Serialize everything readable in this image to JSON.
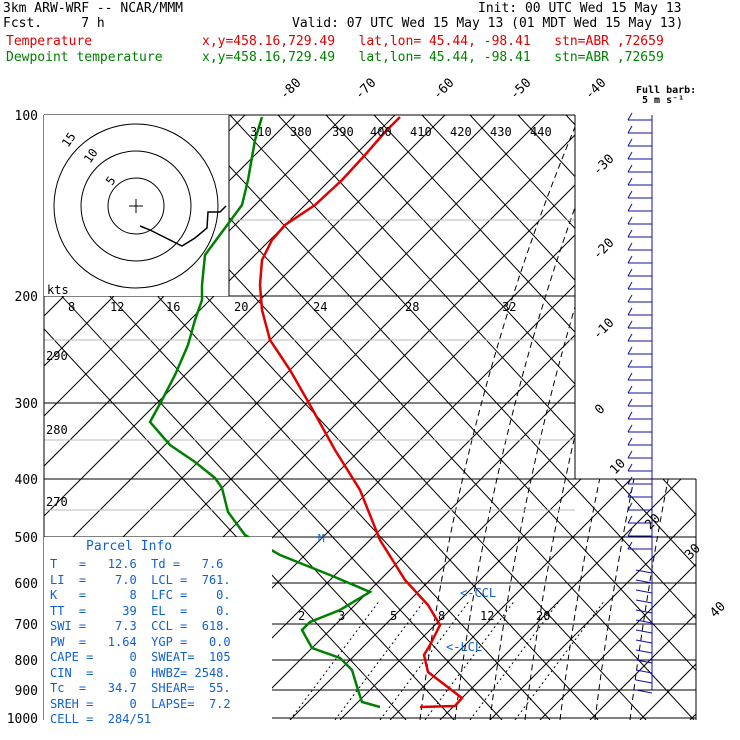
{
  "header": {
    "model": "3km ARW-WRF -- NCAR/MMM",
    "init": "Init: 00 UTC Wed 15 May 13",
    "fcst": "Fcst.     7 h",
    "valid": "Valid: 07 UTC Wed 15 May 13 (01 MDT Wed 15 May 13)",
    "temp_label": "Temperature",
    "temp_loc": "x,y=458.16,729.49   lat,lon= 45.44, -98.41   stn=ABR ,72659",
    "dew_label": "Dewpoint temperature",
    "dew_loc": "x,y=458.16,729.49   lat,lon= 45.44, -98.41   stn=ABR ,72659",
    "barb_legend_1": "Full barb:",
    "barb_legend_2": "5 m s⁻¹"
  },
  "colors": {
    "temperature": "#e00000",
    "dewpoint": "#008000",
    "parcel": "#1060d0",
    "barb": "#1010a0"
  },
  "chart_data": {
    "type": "line",
    "pressure_labels": [
      "100",
      "200",
      "300",
      "400",
      "500",
      "600",
      "700",
      "800",
      "900",
      "1000"
    ],
    "isotherm_labels": [
      "-80",
      "-70",
      "-60",
      "-50",
      "-40",
      "-30",
      "-20",
      "-10",
      "0",
      "10",
      "20",
      "30",
      "40"
    ],
    "theta_labels": [
      "310",
      "380",
      "390",
      "400",
      "410",
      "420",
      "430",
      "440"
    ],
    "hodo_speed_labels": [
      "8",
      "12",
      "16",
      "20",
      "24",
      "28",
      "32"
    ],
    "hodo_unit": "kts",
    "hodo_ring_labels": [
      "5",
      "10",
      "15"
    ],
    "mixing_ratio_labels": [
      "2",
      "3",
      "5",
      "8",
      "12",
      "20"
    ],
    "left_labels": [
      "290",
      "280",
      "270"
    ],
    "ccl_label": "<-CCL",
    "lcl_label": "<-LCL",
    "lfc_mark": "M",
    "series": [
      {
        "name": "Temperature",
        "points": [
          [
            400,
            117
          ],
          [
            385,
            132
          ],
          [
            365,
            155
          ],
          [
            342,
            180
          ],
          [
            315,
            205
          ],
          [
            285,
            225
          ],
          [
            272,
            240
          ],
          [
            262,
            260
          ],
          [
            260,
            285
          ],
          [
            262,
            310
          ],
          [
            270,
            340
          ],
          [
            290,
            370
          ],
          [
            310,
            405
          ],
          [
            335,
            450
          ],
          [
            360,
            490
          ],
          [
            380,
            540
          ],
          [
            405,
            580
          ],
          [
            428,
            605
          ],
          [
            440,
            625
          ],
          [
            435,
            635
          ],
          [
            430,
            645
          ],
          [
            424,
            655
          ],
          [
            428,
            672
          ],
          [
            445,
            685
          ],
          [
            462,
            698
          ],
          [
            455,
            706
          ],
          [
            420,
            707
          ]
        ]
      },
      {
        "name": "Dewpoint temperature",
        "points": [
          [
            262,
            117
          ],
          [
            255,
            140
          ],
          [
            248,
            180
          ],
          [
            242,
            205
          ],
          [
            225,
            228
          ],
          [
            205,
            255
          ],
          [
            202,
            285
          ],
          [
            202,
            300
          ],
          [
            195,
            320
          ],
          [
            188,
            345
          ],
          [
            175,
            375
          ],
          [
            162,
            400
          ],
          [
            150,
            422
          ],
          [
            170,
            445
          ],
          [
            195,
            462
          ],
          [
            215,
            478
          ],
          [
            222,
            488
          ],
          [
            228,
            512
          ],
          [
            245,
            535
          ],
          [
            280,
            555
          ],
          [
            330,
            575
          ],
          [
            370,
            592
          ],
          [
            340,
            610
          ],
          [
            310,
            622
          ],
          [
            302,
            630
          ],
          [
            312,
            648
          ],
          [
            340,
            658
          ],
          [
            352,
            670
          ],
          [
            358,
            690
          ],
          [
            362,
            702
          ],
          [
            380,
            707
          ]
        ]
      }
    ]
  },
  "parcel": {
    "title": "Parcel Info",
    "rows": [
      "T   =   12.6  Td =   7.6",
      "LI  =    7.0  LCL =  761.",
      "K   =      8  LFC =    0.",
      "TT  =     39  EL  =    0.",
      "SWI =    7.3  CCL =  618.",
      "PW  =   1.64  YGP =   0.0",
      "CAPE =     0  SWEAT=  105",
      "CIN  =     0  HWBZ= 2548.",
      "Tc  =   34.7  SHEAR=  55.",
      "SREH =     0  LAPSE=  7.2",
      "CELL =  284/51"
    ]
  }
}
